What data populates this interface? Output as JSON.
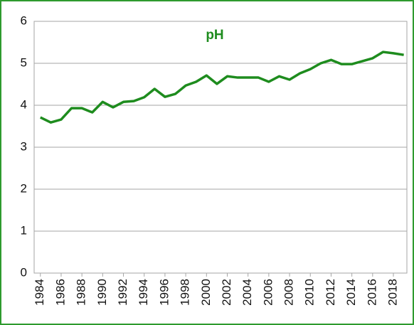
{
  "chart_data": {
    "type": "line",
    "title": "pH",
    "x": [
      1984,
      1985,
      1986,
      1987,
      1988,
      1989,
      1990,
      1991,
      1992,
      1993,
      1994,
      1995,
      1996,
      1997,
      1998,
      1999,
      2000,
      2001,
      2002,
      2003,
      2004,
      2005,
      2006,
      2007,
      2008,
      2009,
      2010,
      2011,
      2012,
      2013,
      2014,
      2015,
      2016,
      2017,
      2018,
      2019
    ],
    "series": [
      {
        "name": "pH",
        "color": "#1e8c1e",
        "values": [
          3.71,
          3.59,
          3.66,
          3.93,
          3.93,
          3.83,
          4.08,
          3.95,
          4.08,
          4.1,
          4.19,
          4.39,
          4.2,
          4.27,
          4.47,
          4.56,
          4.71,
          4.51,
          4.69,
          4.66,
          4.66,
          4.66,
          4.56,
          4.69,
          4.61,
          4.76,
          4.86,
          5.0,
          5.08,
          4.98,
          4.98,
          5.05,
          5.12,
          5.27,
          5.24,
          5.2
        ]
      }
    ],
    "xlim": [
      1983.4,
      2019.3
    ],
    "xticks": [
      1984,
      1986,
      1988,
      1990,
      1992,
      1994,
      1996,
      1998,
      2000,
      2002,
      2004,
      2006,
      2008,
      2010,
      2012,
      2014,
      2016,
      2018
    ],
    "ylim": [
      0,
      6
    ],
    "yticks": [
      0,
      1,
      2,
      3,
      4,
      5,
      6
    ],
    "grid": true
  }
}
